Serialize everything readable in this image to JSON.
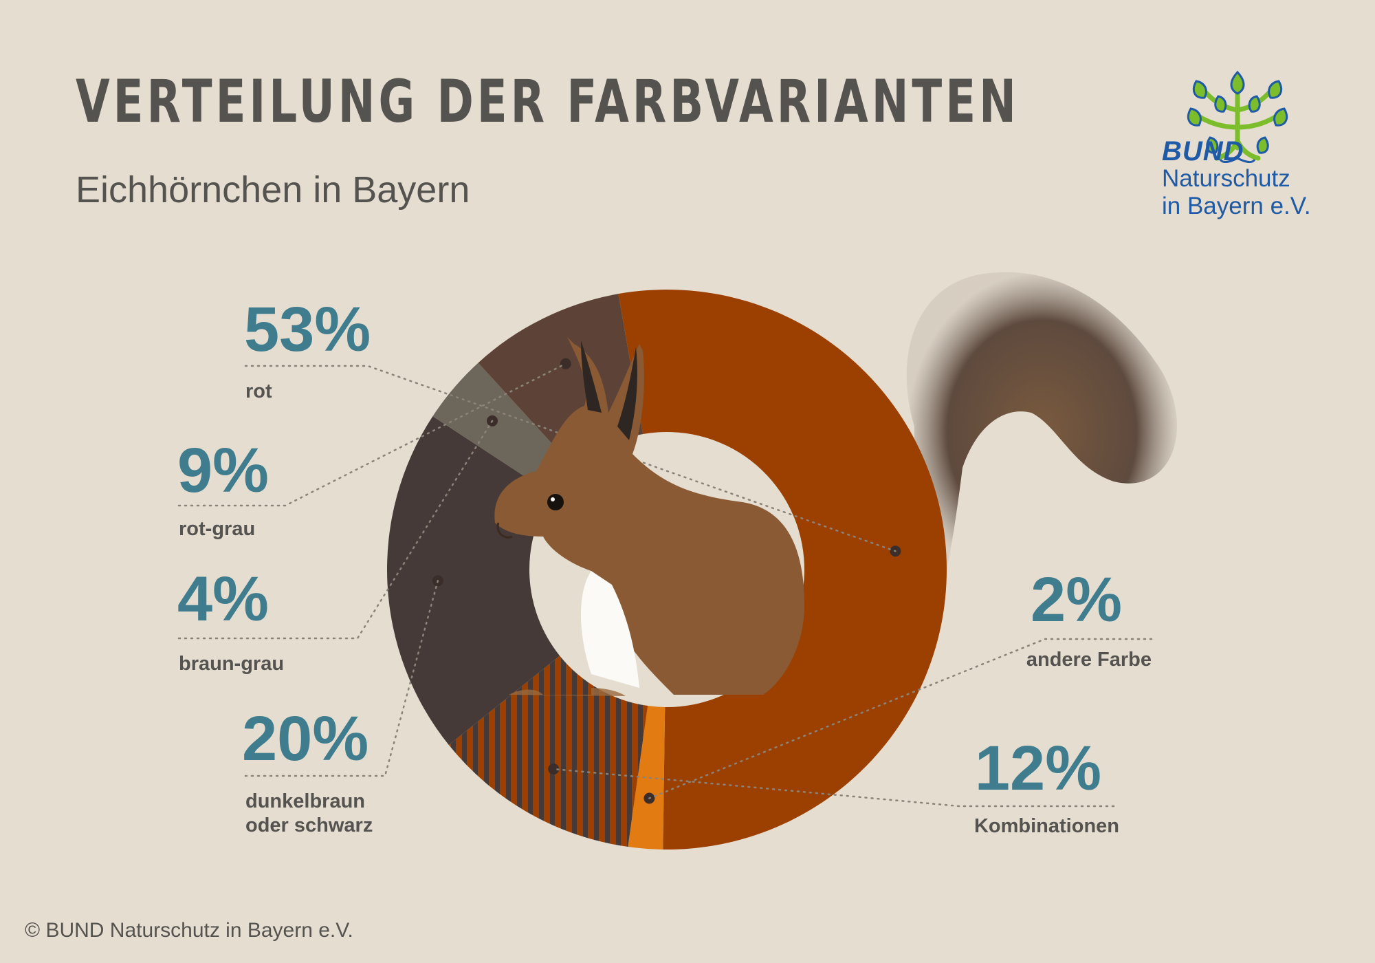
{
  "title": "VERTEILUNG DER FARBVARIANTEN",
  "subtitle": "Eichhörnchen in Bayern",
  "logo": {
    "line1": "BUND",
    "line2": "Naturschutz",
    "line3": "in Bayern e.V.",
    "icon": "tree-logo-icon",
    "colors": {
      "text": "#1f5aa6",
      "leaves": "#7cbd2c"
    }
  },
  "copyright": "© BUND Naturschutz in Bayern e.V.",
  "image": {
    "subject": "squirrel-photo"
  },
  "chart_data": {
    "type": "pie",
    "variant": "donut",
    "slices": [
      {
        "label": "rot",
        "percent_text": "53%",
        "value": 53,
        "color": "#9b4000",
        "pattern": "solid"
      },
      {
        "label": "andere Farbe",
        "percent_text": "2%",
        "value": 2,
        "color": "#e17b12",
        "pattern": "solid"
      },
      {
        "label": "Kombinationen",
        "percent_text": "12%",
        "value": 12,
        "color": "#9b4000",
        "pattern": "stripes",
        "stripe_color": "#463a38"
      },
      {
        "label": "dunkelbraun\noder schwarz",
        "percent_text": "20%",
        "value": 20,
        "color": "#463a38",
        "pattern": "solid"
      },
      {
        "label": "braun-grau",
        "percent_text": "4%",
        "value": 4,
        "color": "#6d665b",
        "pattern": "solid"
      },
      {
        "label": "rot-grau",
        "percent_text": "9%",
        "value": 9,
        "color": "#5d4337",
        "pattern": "solid"
      }
    ]
  }
}
